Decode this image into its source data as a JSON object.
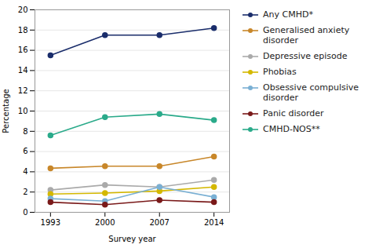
{
  "chart_data": {
    "type": "line",
    "x": [
      1993,
      2000,
      2007,
      2014
    ],
    "series": [
      {
        "name": "Any CMHD*",
        "color": "#1a2d6b",
        "marker": "circle",
        "values": [
          15.5,
          17.5,
          17.5,
          18.2
        ]
      },
      {
        "name": "Generalised anxiety\ndisorder",
        "color": "#c8872a",
        "marker": "circle",
        "values": [
          4.35,
          4.55,
          4.55,
          5.5
        ]
      },
      {
        "name": "Depressive episode",
        "color": "#aaaaaa",
        "marker": "circle",
        "values": [
          2.2,
          2.7,
          2.5,
          3.2
        ]
      },
      {
        "name": "Phobias",
        "color": "#d4b800",
        "marker": "circle",
        "values": [
          1.8,
          1.9,
          2.1,
          2.5
        ]
      },
      {
        "name": "Obsessive compulsive\ndisorder",
        "color": "#7ab0d4",
        "marker": "circle",
        "values": [
          1.35,
          1.1,
          2.5,
          1.5
        ]
      },
      {
        "name": "Panic disorder",
        "color": "#7a1a1a",
        "marker": "circle",
        "values": [
          1.0,
          0.75,
          1.2,
          1.0
        ]
      },
      {
        "name": "CMHD-NOS**",
        "color": "#2aaa8a",
        "marker": "circle",
        "values": [
          7.6,
          9.4,
          9.7,
          9.1
        ]
      }
    ],
    "xlabel": "Survey year",
    "ylabel": "Percentage",
    "xlim": [
      1991,
      2016
    ],
    "xticks": [
      1993,
      2000,
      2007,
      2014
    ],
    "ylim": [
      0,
      20
    ],
    "yticks": [
      0,
      2,
      4,
      6,
      8,
      10,
      12,
      14,
      16,
      18,
      20
    ],
    "grid": true,
    "legend": "right"
  }
}
